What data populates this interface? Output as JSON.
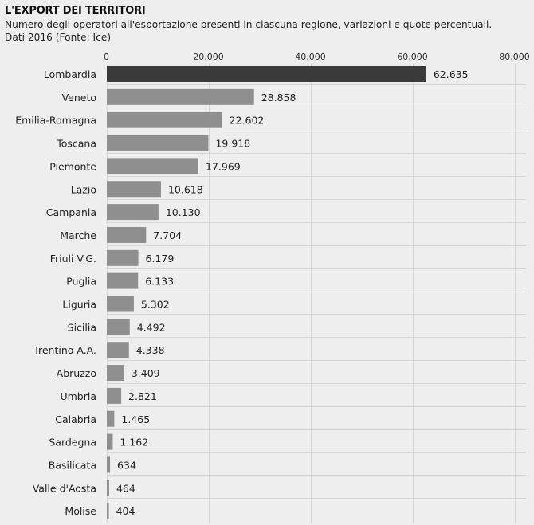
{
  "header": {
    "title": "L'EXPORT DEI TERRITORI",
    "subtitle_line1": "Numero degli operatori all'esportazione presenti in ciascuna regione, variazioni e quote percentuali.",
    "subtitle_line2": "Dati 2016 (Fonte: Ice)"
  },
  "colors": {
    "background": "#eeeeee",
    "highlight_bar": "#3a3a3a",
    "bar": "#8f8f8f",
    "grid": "#d6d6d6"
  },
  "chart_data": {
    "type": "bar",
    "orientation": "horizontal",
    "categories": [
      "Lombardia",
      "Veneto",
      "Emilia-Romagna",
      "Toscana",
      "Piemonte",
      "Lazio",
      "Campania",
      "Marche",
      "Friuli V.G.",
      "Puglia",
      "Liguria",
      "Sicilia",
      "Trentino A.A.",
      "Abruzzo",
      "Umbria",
      "Calabria",
      "Sardegna",
      "Basilicata",
      "Valle d'Aosta",
      "Molise"
    ],
    "values": [
      62635,
      28858,
      22602,
      19918,
      17969,
      10618,
      10130,
      7704,
      6179,
      6133,
      5302,
      4492,
      4338,
      3409,
      2821,
      1465,
      1162,
      634,
      464,
      404
    ],
    "value_labels": [
      "62.635",
      "28.858",
      "22.602",
      "19.918",
      "17.969",
      "10.618",
      "10.130",
      "7.704",
      "6.179",
      "6.133",
      "5.302",
      "4.492",
      "4.338",
      "3.409",
      "2.821",
      "1.465",
      "1.162",
      "634",
      "464",
      "404"
    ],
    "xlim": [
      0,
      80000
    ],
    "ticks": [
      0,
      20000,
      40000,
      60000,
      80000
    ],
    "tick_labels": [
      "0",
      "20.000",
      "40.000",
      "60.000",
      "80.000"
    ],
    "tick_position": "top",
    "highlight": "Lombardia",
    "grid": true
  }
}
